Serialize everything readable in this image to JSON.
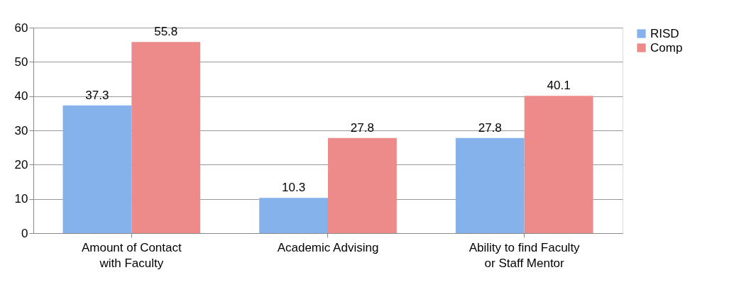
{
  "chart_data": {
    "type": "bar",
    "categories": [
      "Amount of Contact\nwith Faculty",
      "Academic Advising",
      "Ability to find Faculty\nor Staff Mentor"
    ],
    "series": [
      {
        "name": "RISD",
        "color": "#86b2ec",
        "values": [
          37.3,
          10.3,
          27.8
        ]
      },
      {
        "name": "Comp",
        "color": "#ec8b89",
        "values": [
          55.8,
          27.8,
          40.1
        ]
      }
    ],
    "ylim": [
      0,
      60
    ],
    "yticks": [
      0,
      10,
      20,
      30,
      40,
      50,
      60
    ],
    "grid": "y",
    "legend": "right",
    "data_labels": true
  }
}
